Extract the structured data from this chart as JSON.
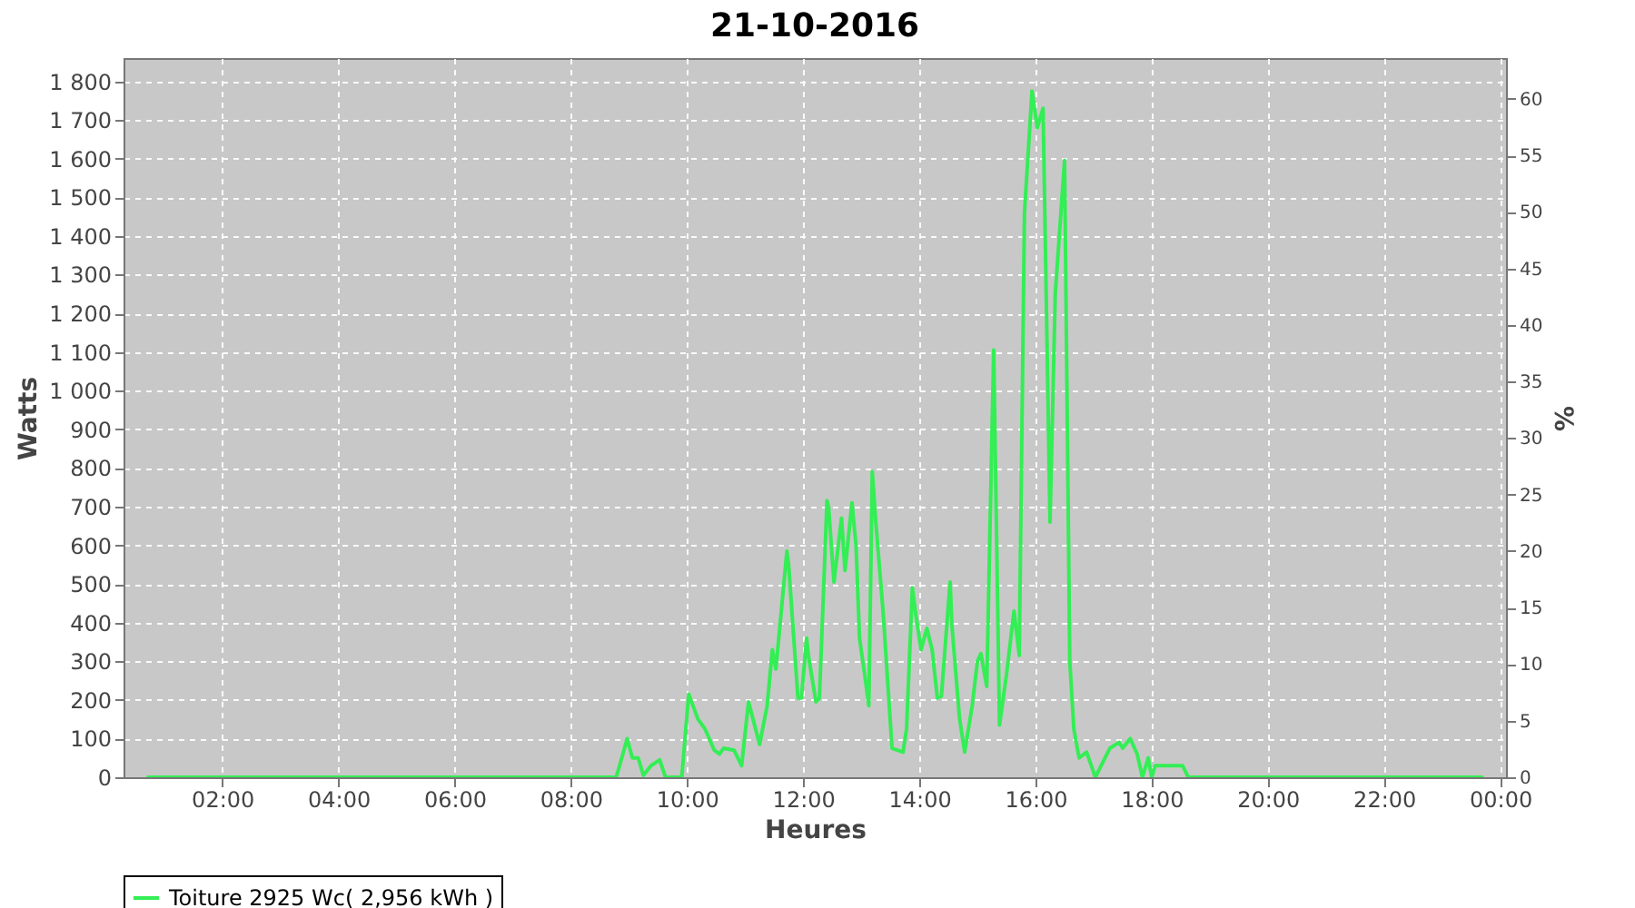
{
  "chart_data": {
    "type": "line",
    "title": "21-10-2016",
    "xlabel": "Heures",
    "ylabel": "Watts",
    "y2label": "%",
    "xlim": [
      0.3,
      24.1
    ],
    "xticks": [
      {
        "value": 2,
        "label": "02:00"
      },
      {
        "value": 4,
        "label": "04:00"
      },
      {
        "value": 6,
        "label": "06:00"
      },
      {
        "value": 8,
        "label": "08:00"
      },
      {
        "value": 10,
        "label": "10:00"
      },
      {
        "value": 12,
        "label": "12:00"
      },
      {
        "value": 14,
        "label": "14:00"
      },
      {
        "value": 16,
        "label": "16:00"
      },
      {
        "value": 18,
        "label": "18:00"
      },
      {
        "value": 20,
        "label": "20:00"
      },
      {
        "value": 22,
        "label": "22:00"
      },
      {
        "value": 24,
        "label": "00:00"
      }
    ],
    "ylim": [
      0,
      1860
    ],
    "yticks": [
      0,
      100,
      200,
      300,
      400,
      500,
      600,
      700,
      800,
      900,
      {
        "value": 1000,
        "label": "1 000"
      },
      {
        "value": 1100,
        "label": "1 100"
      },
      {
        "value": 1200,
        "label": "1 200"
      },
      {
        "value": 1300,
        "label": "1 300"
      },
      {
        "value": 1400,
        "label": "1 400"
      },
      {
        "value": 1500,
        "label": "1 500"
      },
      {
        "value": 1600,
        "label": "1 600"
      },
      {
        "value": 1700,
        "label": "1 700"
      },
      {
        "value": 1800,
        "label": "1 800"
      }
    ],
    "y2lim": [
      0,
      63.6
    ],
    "y2ticks": [
      0,
      5,
      10,
      15,
      20,
      25,
      30,
      35,
      40,
      45,
      50,
      55,
      60
    ],
    "grid": true,
    "legend": "bottom",
    "marker": "none",
    "line_style": "solid",
    "x": [
      0.72,
      8.78,
      8.84,
      8.97,
      9.06,
      9.16,
      9.25,
      9.38,
      9.53,
      9.63,
      9.91,
      10.03,
      10.19,
      10.31,
      10.47,
      10.56,
      10.63,
      10.81,
      10.94,
      11.06,
      11.25,
      11.38,
      11.47,
      11.53,
      11.63,
      11.72,
      11.75,
      11.91,
      11.97,
      12.06,
      12.09,
      12.22,
      12.28,
      12.41,
      12.44,
      12.53,
      12.66,
      12.72,
      12.84,
      12.91,
      12.97,
      13.06,
      13.13,
      13.19,
      13.25,
      13.38,
      13.53,
      13.72,
      13.78,
      13.88,
      13.94,
      14.03,
      14.13,
      14.22,
      14.31,
      14.38,
      14.53,
      14.56,
      14.69,
      14.78,
      14.91,
      15.0,
      15.06,
      15.16,
      15.28,
      15.38,
      15.5,
      15.63,
      15.72,
      15.81,
      15.94,
      16.03,
      16.13,
      16.25,
      16.34,
      16.5,
      16.59,
      16.66,
      16.75,
      16.88,
      17.03,
      17.28,
      17.44,
      17.5,
      17.63,
      17.75,
      17.84,
      17.94,
      18.0,
      18.06,
      18.53,
      18.63,
      23.69
    ],
    "series": [
      {
        "name": "Toiture 2925 Wc( 2,956 kWh )",
        "color": "#33ee55",
        "values": [
          0,
          0,
          30,
          100,
          50,
          50,
          5,
          30,
          45,
          0,
          0,
          215,
          150,
          125,
          70,
          60,
          75,
          70,
          30,
          195,
          85,
          185,
          330,
          280,
          440,
          585,
          550,
          205,
          205,
          360,
          315,
          195,
          205,
          715,
          695,
          505,
          670,
          535,
          710,
          600,
          360,
          265,
          185,
          790,
          660,
          420,
          75,
          65,
          125,
          490,
          420,
          330,
          385,
          330,
          205,
          210,
          505,
          395,
          155,
          65,
          185,
          300,
          320,
          235,
          1105,
          135,
          265,
          430,
          315,
          1460,
          1775,
          1680,
          1730,
          660,
          1250,
          1595,
          300,
          125,
          50,
          65,
          0,
          75,
          90,
          75,
          100,
          60,
          0,
          50,
          0,
          30,
          30,
          0,
          0
        ]
      }
    ]
  }
}
